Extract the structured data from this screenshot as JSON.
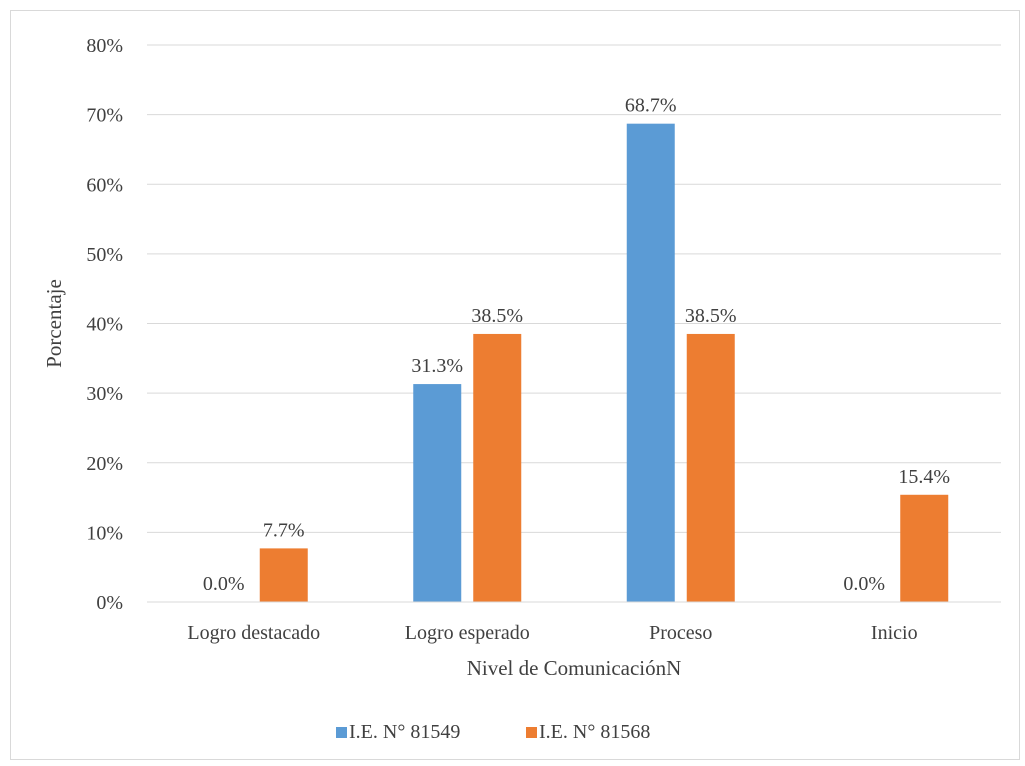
{
  "chart_data": {
    "type": "bar",
    "title": "",
    "xlabel": "Nivel de ComunicaciónN",
    "ylabel": "Porcentaje",
    "categories": [
      "Logro destacado",
      "Logro esperado",
      "Proceso",
      "Inicio"
    ],
    "series": [
      {
        "name": "I.E. N° 81549",
        "values": [
          0.0,
          31.3,
          68.7,
          0.0
        ],
        "labels": [
          "0.0%",
          "31.3%",
          "68.7%",
          "0.0%"
        ],
        "color": "#5b9bd5"
      },
      {
        "name": "I.E. N° 81568",
        "values": [
          7.7,
          38.5,
          38.5,
          15.4
        ],
        "labels": [
          "7.7%",
          "38.5%",
          "38.5%",
          "15.4%"
        ],
        "color": "#ed7d31"
      }
    ],
    "ylim": [
      0,
      80
    ],
    "ytick_values": [
      0,
      10,
      20,
      30,
      40,
      50,
      60,
      70,
      80
    ],
    "yticks": [
      "0%",
      "10%",
      "20%",
      "30%",
      "40%",
      "50%",
      "60%",
      "70%",
      "80%"
    ],
    "grid": true,
    "legend_position": "bottom-center",
    "gridline_color": "#d9d9d9"
  }
}
